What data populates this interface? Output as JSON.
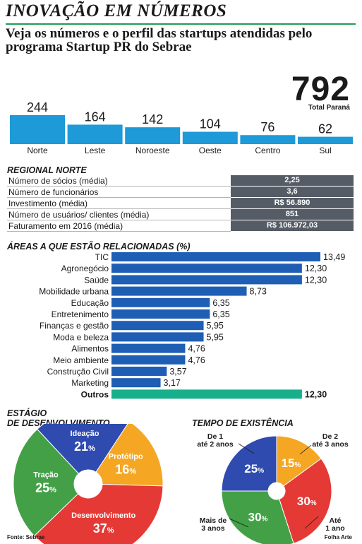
{
  "header": {
    "title": "INOVAÇÃO EM NÚMEROS",
    "subtitle": "Veja os números e o perfil das startups atendidas pelo programa Startup PR do Sebrae"
  },
  "total": {
    "value": "792",
    "label": "Total Paraná"
  },
  "regional_norte": {
    "heading": "REGIONAL NORTE",
    "rows": [
      {
        "label": "Número de sócios (média)",
        "value": "2,25"
      },
      {
        "label": "Número de funcionários",
        "value": "3,6"
      },
      {
        "label": "Investimento (média)",
        "value": "R$ 56.890"
      },
      {
        "label": "Número de usuários/ clientes (média)",
        "value": "851"
      },
      {
        "label": "Faturamento em 2016 (média)",
        "value": "R$ 106.972,03"
      }
    ]
  },
  "footer": {
    "source": "Fonte: Sebrae",
    "credit": "Folha Arte"
  },
  "colors": {
    "bar_blue": "#1d9ad7",
    "area_blue": "#1e5eb4",
    "outros_green": "#17b08a",
    "table_gray": "#555c66",
    "pie_blue": "#2f4bb0",
    "pie_orange": "#f5a623",
    "pie_red": "#e53935",
    "pie_green": "#43a047"
  },
  "chart_data": [
    {
      "type": "bar",
      "categories": [
        "Norte",
        "Leste",
        "Noroeste",
        "Oeste",
        "Centro",
        "Sul"
      ],
      "values": [
        244,
        164,
        142,
        104,
        76,
        62
      ],
      "value_labels": [
        "244",
        "164",
        "142",
        "104",
        "76",
        "62"
      ]
    },
    {
      "type": "bar",
      "orientation": "horizontal",
      "title": "ÁREAS A QUE ESTÃO RELACIONADAS (%)",
      "categories": [
        "TIC",
        "Agronegócio",
        "Saúde",
        "Mobilidade urbana",
        "Educação",
        "Entretenimento",
        "Finanças e gestão",
        "Moda e beleza",
        "Alimentos",
        "Meio ambiente",
        "Construção Civil",
        "Marketing",
        "Outros"
      ],
      "values": [
        13.49,
        12.3,
        12.3,
        8.73,
        6.35,
        6.35,
        5.95,
        5.95,
        4.76,
        4.76,
        3.57,
        3.17,
        12.3
      ],
      "value_labels": [
        "13,49",
        "12,30",
        "12,30",
        "8,73",
        "6,35",
        "6,35",
        "5,95",
        "5,95",
        "4,76",
        "4,76",
        "3,57",
        "3,17",
        "12,30"
      ],
      "highlight": "Outros"
    },
    {
      "type": "pie",
      "title_lines": [
        "ESTÁGIO",
        "DE DESENVOLVIMENTO"
      ],
      "slices": [
        {
          "label": "Ideação",
          "value": 21,
          "value_label": "21",
          "color": "#2f4bb0"
        },
        {
          "label": "Protótipo",
          "value": 16,
          "value_label": "16",
          "color": "#f5a623"
        },
        {
          "label": "Desenvolvimento",
          "value": 37,
          "value_label": "37",
          "color": "#e53935"
        },
        {
          "label": "Tração",
          "value": 25,
          "value_label": "25",
          "color": "#43a047"
        }
      ],
      "unit": "%"
    },
    {
      "type": "pie",
      "title": "TEMPO DE EXISTÊNCIA",
      "slices": [
        {
          "label_lines": [
            "De 2",
            "até 3 anos"
          ],
          "value": 15,
          "value_label": "15",
          "color": "#f5a623"
        },
        {
          "label_lines": [
            "Até",
            "1 ano"
          ],
          "value": 30,
          "value_label": "30",
          "color": "#e53935"
        },
        {
          "label_lines": [
            "Mais de",
            "3 anos"
          ],
          "value": 30,
          "value_label": "30",
          "color": "#43a047"
        },
        {
          "label_lines": [
            "De 1",
            "até 2 anos"
          ],
          "value": 25,
          "value_label": "25",
          "color": "#2f4bb0"
        }
      ],
      "unit": "%"
    }
  ]
}
